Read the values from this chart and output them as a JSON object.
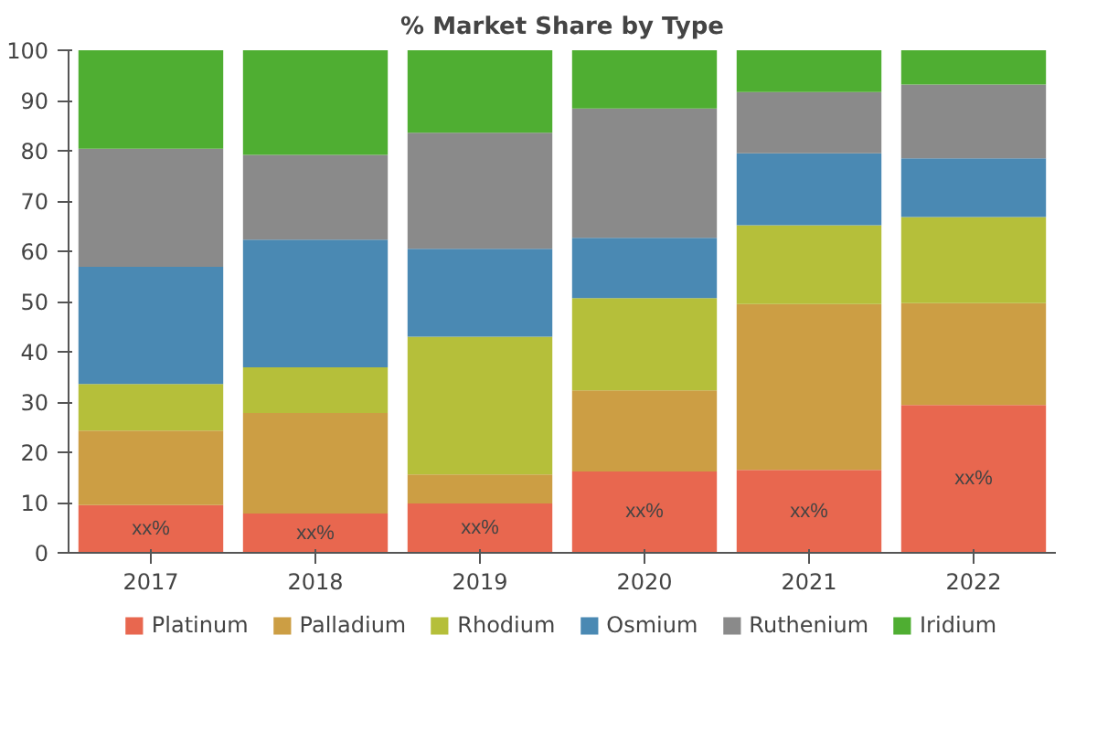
{
  "chart_data": {
    "type": "bar",
    "title": "% Market Share by Type",
    "stacked": true,
    "categories": [
      "2017",
      "2018",
      "2019",
      "2020",
      "2021",
      "2022"
    ],
    "series": [
      {
        "name": "Platinum",
        "color": "#e8674f",
        "values": [
          9.5,
          7.8,
          9.8,
          16.2,
          16.5,
          29.4
        ],
        "value_labels": [
          "xx%",
          "xx%",
          "xx%",
          "xx%",
          "xx%",
          "xx%"
        ]
      },
      {
        "name": "Palladium",
        "color": "#cc9e44",
        "values": [
          14.8,
          20.0,
          5.8,
          16.1,
          33.0,
          20.3
        ]
      },
      {
        "name": "Rhodium",
        "color": "#b5bf3a",
        "values": [
          9.3,
          9.1,
          27.4,
          18.4,
          15.7,
          17.1
        ]
      },
      {
        "name": "Osmium",
        "color": "#4a89b3",
        "values": [
          23.3,
          25.4,
          17.5,
          12.0,
          14.3,
          11.7
        ]
      },
      {
        "name": "Ruthenium",
        "color": "#8a8a8a",
        "values": [
          23.5,
          16.9,
          23.1,
          25.7,
          12.2,
          14.7
        ]
      },
      {
        "name": "Iridium",
        "color": "#4fae32",
        "values": [
          19.6,
          20.8,
          16.4,
          11.6,
          8.3,
          6.8
        ]
      }
    ],
    "ylim": [
      0,
      100
    ],
    "yticks": [
      0,
      10,
      20,
      30,
      40,
      50,
      60,
      70,
      80,
      90,
      100
    ],
    "legend": "bottom",
    "grid": false
  }
}
